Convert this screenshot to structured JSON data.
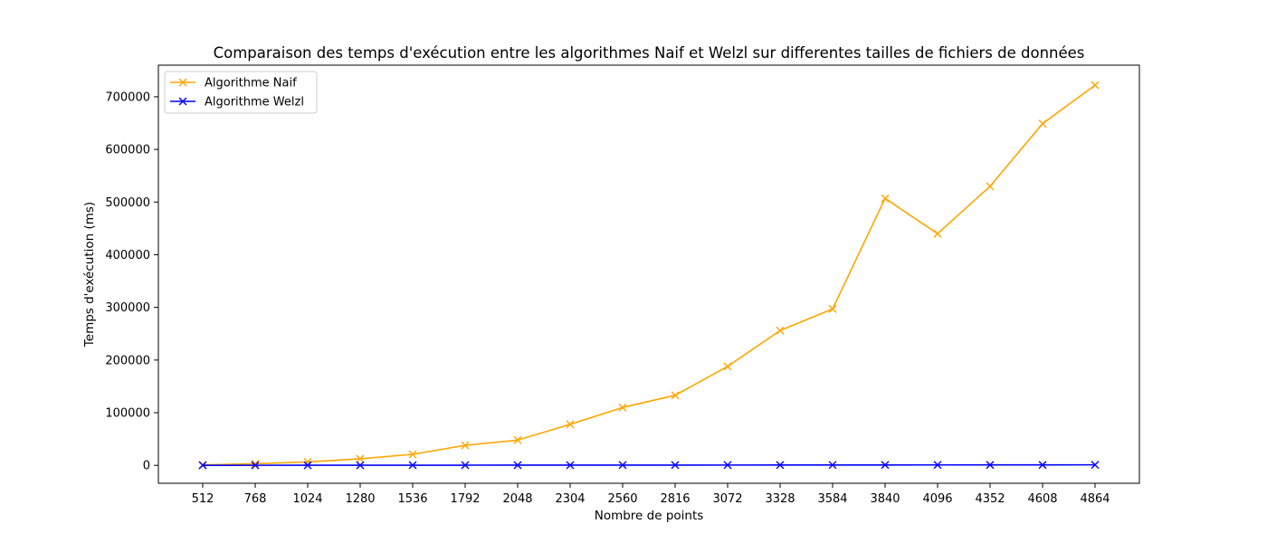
{
  "chart_data": {
    "type": "line",
    "title": "Comparaison des temps d'exécution entre les algorithmes Naif et Welzl sur differentes tailles de fichiers de données",
    "xlabel": "Nombre de points",
    "ylabel": "Temps d'exécution (ms)",
    "x": [
      512,
      768,
      1024,
      1280,
      1536,
      1792,
      2048,
      2304,
      2560,
      2816,
      3072,
      3328,
      3584,
      3840,
      4096,
      4352,
      4608,
      4864
    ],
    "x_tick_labels": [
      "512",
      "768",
      "1024",
      "1280",
      "1536",
      "1792",
      "2048",
      "2304",
      "2560",
      "2816",
      "3072",
      "3328",
      "3584",
      "3840",
      "4096",
      "4352",
      "4608",
      "4864"
    ],
    "y_ticks": [
      0,
      100000,
      200000,
      300000,
      400000,
      500000,
      600000,
      700000
    ],
    "y_tick_labels": [
      "0",
      "100000",
      "200000",
      "300000",
      "400000",
      "500000",
      "600000",
      "700000"
    ],
    "ylim": [
      -34000,
      760000
    ],
    "grid": false,
    "legend_position": "top-left",
    "series": [
      {
        "name": "Algorithme Naif",
        "color": "#ffa500",
        "marker": "x",
        "values": [
          1000,
          3000,
          6500,
          12500,
          21000,
          38000,
          48000,
          78000,
          110000,
          133000,
          188000,
          256000,
          297000,
          507000,
          440000,
          530000,
          649000,
          722000
        ]
      },
      {
        "name": "Algorithme Welzl",
        "color": "#0000ff",
        "marker": "x",
        "values": [
          100,
          150,
          200,
          250,
          300,
          350,
          400,
          450,
          500,
          550,
          600,
          650,
          700,
          750,
          800,
          850,
          900,
          1000
        ]
      }
    ]
  }
}
